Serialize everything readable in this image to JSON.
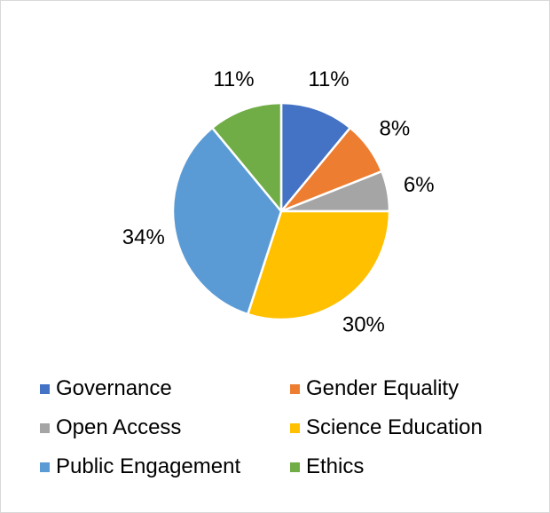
{
  "chart_data": {
    "type": "pie",
    "categories": [
      "Governance",
      "Gender Equality",
      "Open Access",
      "Science Education",
      "Public Engagement",
      "Ethics"
    ],
    "values": [
      11,
      8,
      6,
      30,
      34,
      11
    ],
    "data_labels": [
      "11%",
      "8%",
      "6%",
      "30%",
      "34%",
      "11%"
    ],
    "colors": [
      "#4472C4",
      "#ED7D31",
      "#A5A5A5",
      "#FFC000",
      "#5B9BD5",
      "#70AD47"
    ],
    "legend_position": "bottom",
    "title": ""
  }
}
